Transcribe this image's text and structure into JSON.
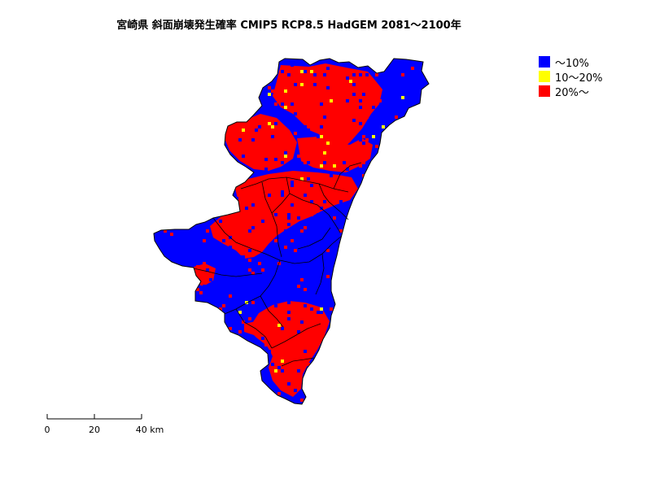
{
  "map": {
    "title": "宮崎県 斜面崩壊発生確率 CMIP5 RCP8.5 HadGEM 2081～2100年",
    "legend": [
      {
        "label": "～10%",
        "color": "#0000ff"
      },
      {
        "label": "10～20%",
        "color": "#ffff00"
      },
      {
        "label": "20%～",
        "color": "#ff0000"
      }
    ],
    "scalebar": {
      "labels": [
        "0",
        "20",
        "40 km"
      ]
    },
    "colors": {
      "low": "#0000ff",
      "mid": "#ffff00",
      "high": "#ff0000",
      "boundary": "#000000"
    }
  }
}
